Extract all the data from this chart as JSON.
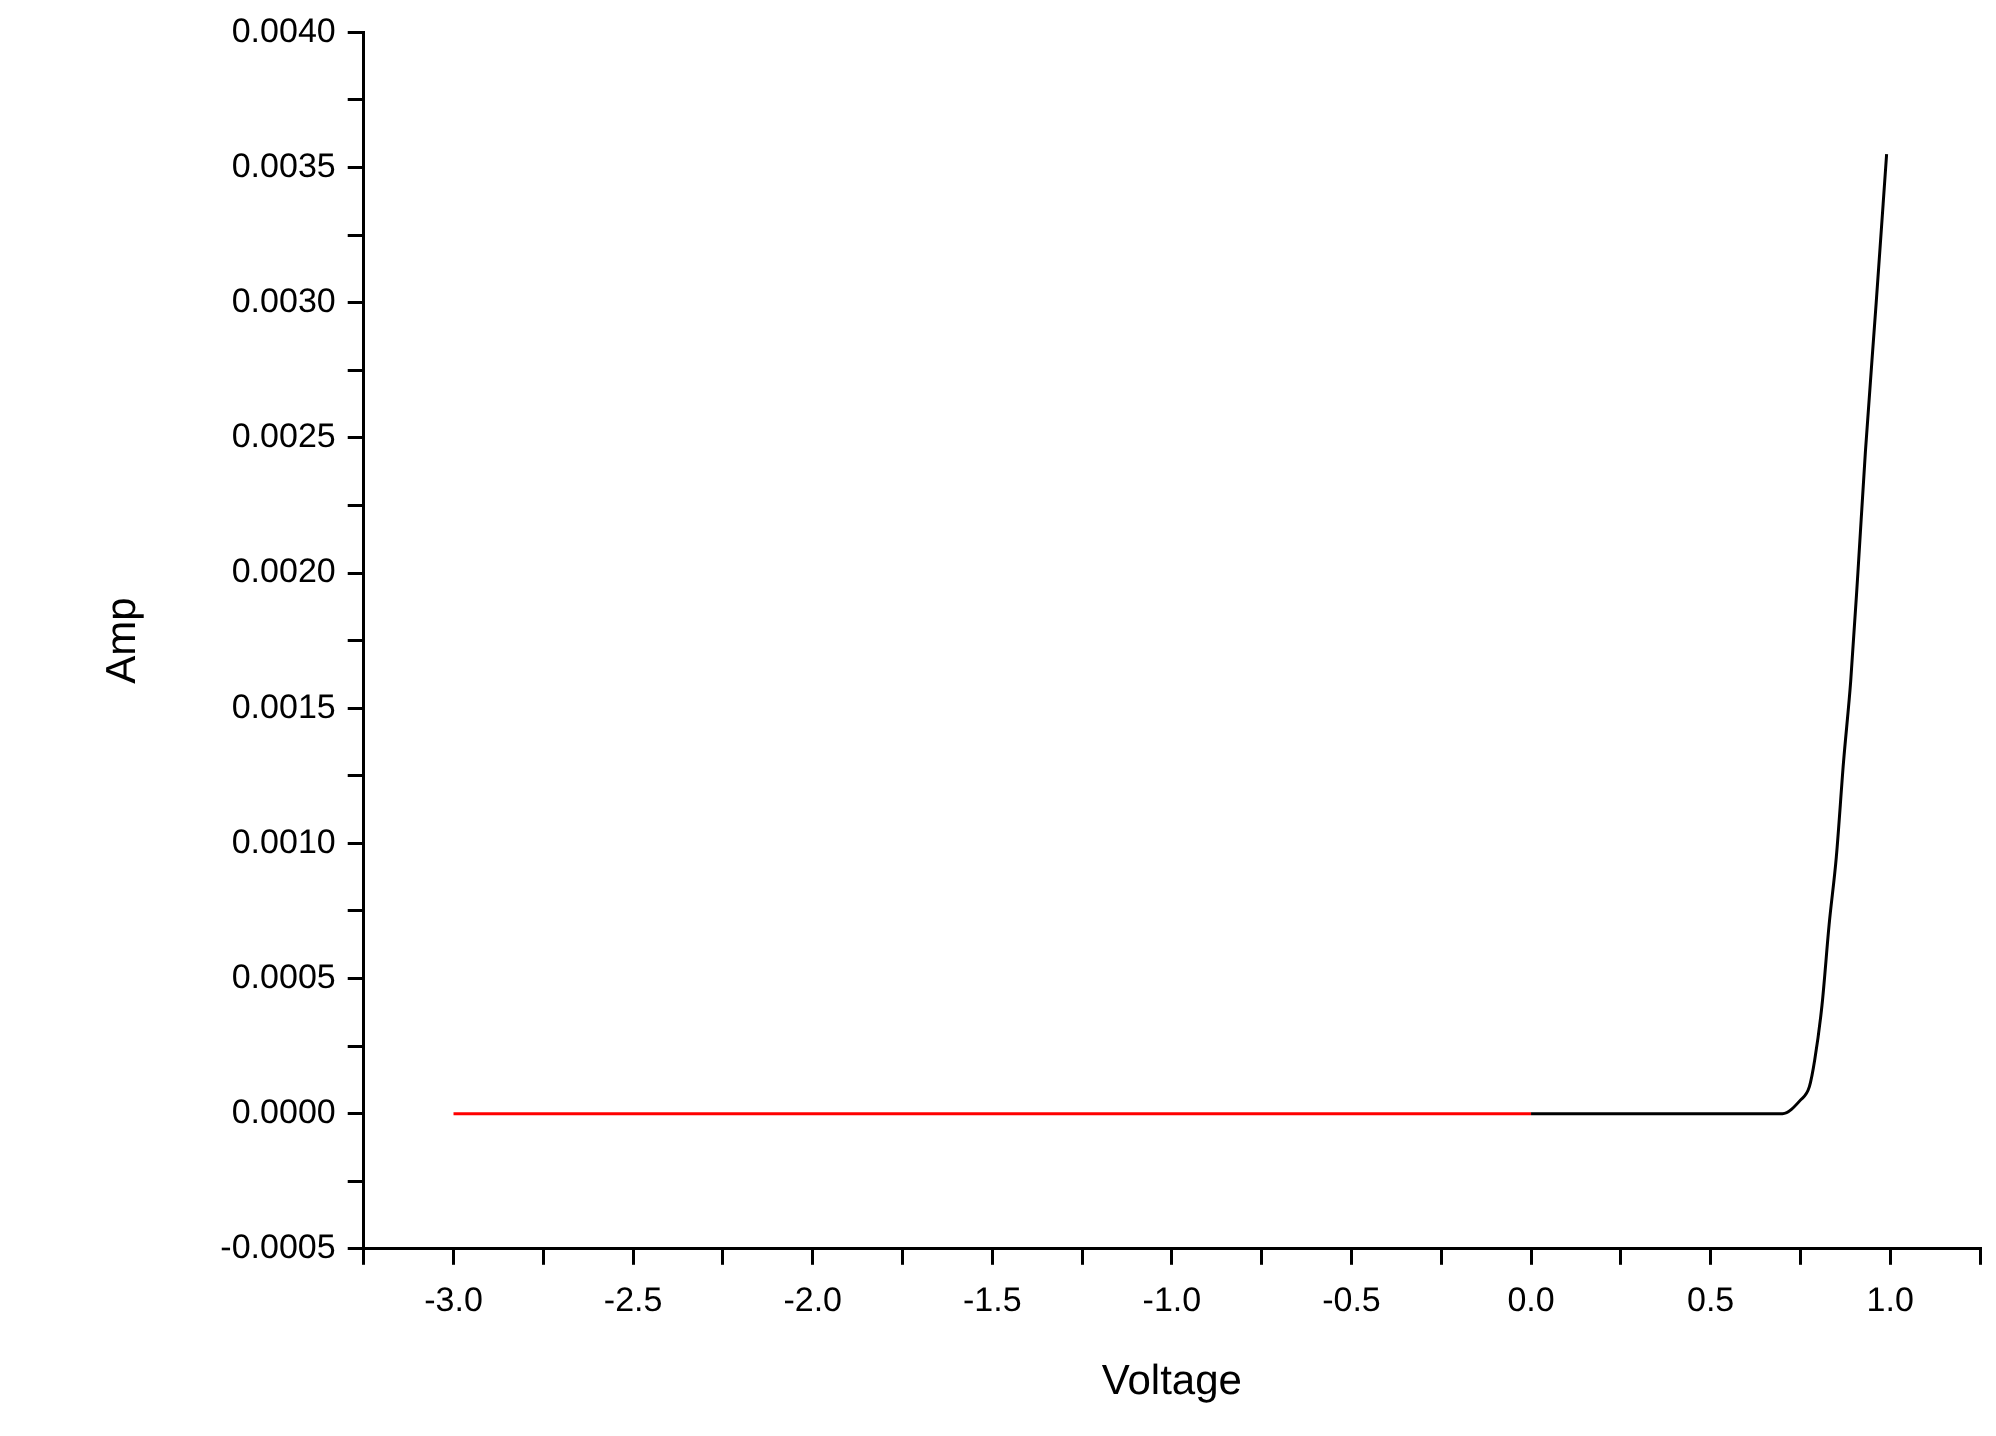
{
  "chart_data": {
    "type": "line",
    "xlabel": "Voltage",
    "ylabel": "Amp",
    "marker": "none",
    "line_style": "solid",
    "grid": false,
    "legend": false,
    "xlim": [
      -3.25,
      1.25
    ],
    "xticks": [
      {
        "value": -3.25,
        "label": null
      },
      {
        "value": -3.0,
        "label": "-3.0"
      },
      {
        "value": -2.75,
        "label": null
      },
      {
        "value": -2.5,
        "label": "-2.5"
      },
      {
        "value": -2.25,
        "label": null
      },
      {
        "value": -2.0,
        "label": "-2.0"
      },
      {
        "value": -1.75,
        "label": null
      },
      {
        "value": -1.5,
        "label": "-1.5"
      },
      {
        "value": -1.25,
        "label": null
      },
      {
        "value": -1.0,
        "label": "-1.0"
      },
      {
        "value": -0.75,
        "label": null
      },
      {
        "value": -0.5,
        "label": "-0.5"
      },
      {
        "value": -0.25,
        "label": null
      },
      {
        "value": 0,
        "label": "0.0"
      },
      {
        "value": 0.25,
        "label": null
      },
      {
        "value": 0.5,
        "label": "0.5"
      },
      {
        "value": 0.75,
        "label": null
      },
      {
        "value": 1.0,
        "label": "1.0"
      },
      {
        "value": 1.25,
        "label": null
      }
    ],
    "ylim": [
      -0.0005,
      0.004
    ],
    "yticks": [
      {
        "value": -0.0005,
        "label": "-0.0005"
      },
      {
        "value": -0.00025,
        "label": null
      },
      {
        "value": 0,
        "label": "0.0000"
      },
      {
        "value": 0.00025,
        "label": null
      },
      {
        "value": 0.0005,
        "label": "0.0005"
      },
      {
        "value": 0.00075,
        "label": null
      },
      {
        "value": 0.001,
        "label": "0.0010"
      },
      {
        "value": 0.00125,
        "label": null
      },
      {
        "value": 0.0015,
        "label": "0.0015"
      },
      {
        "value": 0.00175,
        "label": null
      },
      {
        "value": 0.002,
        "label": "0.0020"
      },
      {
        "value": 0.00225,
        "label": null
      },
      {
        "value": 0.0025,
        "label": "0.0025"
      },
      {
        "value": 0.00275,
        "label": null
      },
      {
        "value": 0.003,
        "label": "0.0030"
      },
      {
        "value": 0.00325,
        "label": null
      },
      {
        "value": 0.0035,
        "label": "0.0035"
      },
      {
        "value": 0.00375,
        "label": null
      },
      {
        "value": 0.004,
        "label": "0.0040"
      }
    ],
    "series": [
      {
        "color": "#ff0000",
        "x": [
          -3.0,
          0
        ],
        "values": [
          0,
          0
        ]
      },
      {
        "color": "#000000",
        "x": [
          0,
          0.3,
          0.6,
          0.7,
          0.75,
          0.775,
          0.79,
          0.81,
          0.83,
          0.85,
          0.87,
          0.89,
          0.91,
          0.931,
          0.961,
          0.99
        ],
        "values": [
          0,
          0,
          0,
          0,
          5e-05,
          0.0001,
          0.0002,
          0.0004,
          0.0007,
          0.00095,
          0.0013,
          0.0016,
          0.002,
          0.00245,
          0.003,
          0.00355
        ]
      }
    ]
  }
}
